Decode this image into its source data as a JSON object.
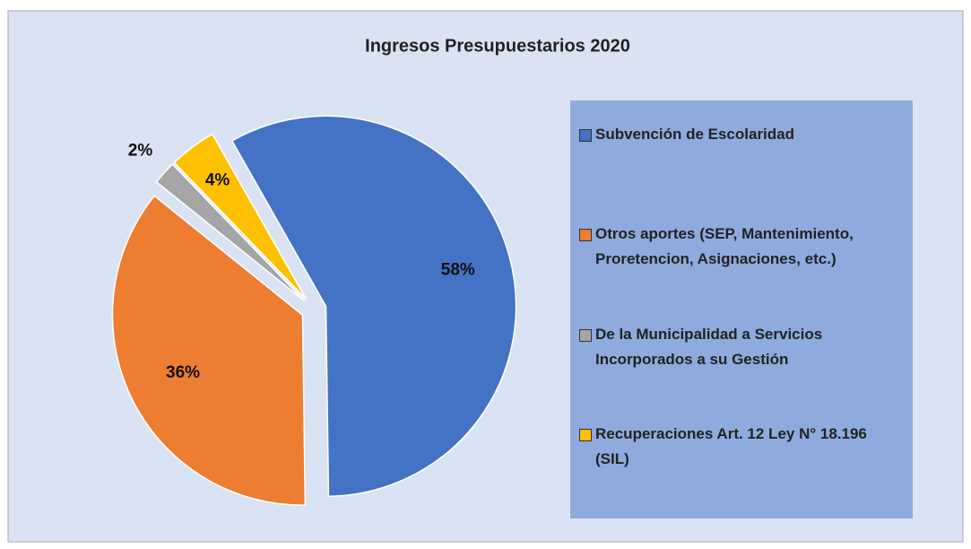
{
  "chart_data": {
    "type": "pie",
    "title": "Ingresos Presupuestarios 2020",
    "categories": [
      "Subvención de Escolaridad",
      "Otros aportes (SEP, Mantenimiento, Proretencion, Asignaciones, etc.)",
      "De la Municipalidad a Servicios Incorporados a su Gestión",
      "Recuperaciones Art. 12 Ley N° 18.196 (SIL)"
    ],
    "values": [
      58,
      36,
      2,
      4
    ],
    "value_labels": [
      "58%",
      "36%",
      "2%",
      "4%"
    ],
    "colors": [
      "#4472c4",
      "#ed7d31",
      "#a5a5a5",
      "#ffc000"
    ],
    "legend": "right"
  }
}
